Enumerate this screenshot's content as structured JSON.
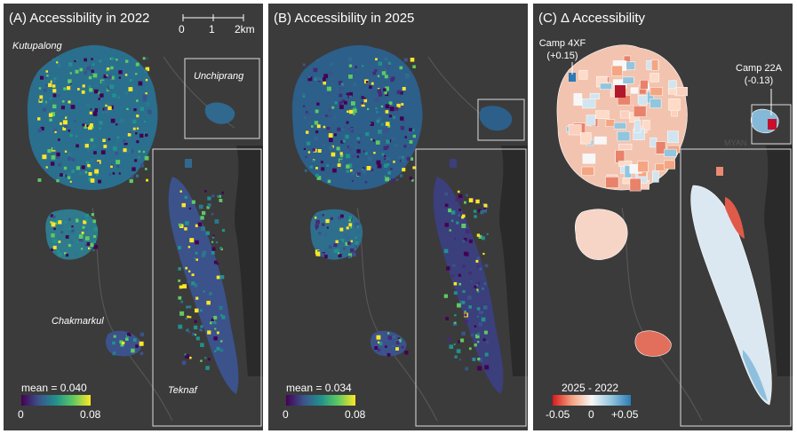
{
  "panels": [
    {
      "title": "(A) Accessibility in 2022",
      "mean_label": "mean = 0.040",
      "legend_min": "0",
      "legend_max": "0.08",
      "colormap": [
        "#440154",
        "#3b528b",
        "#21918c",
        "#5ec962",
        "#fde725"
      ]
    },
    {
      "title": "(B) Accessibility in 2025",
      "mean_label": "mean = 0.034",
      "legend_min": "0",
      "legend_max": "0.08",
      "colormap": [
        "#440154",
        "#3b528b",
        "#21918c",
        "#5ec962",
        "#fde725"
      ]
    },
    {
      "title": "(C) Δ Accessibility",
      "legend_title": "2025 - 2022",
      "legend_min": "-0.05",
      "legend_mid": "0",
      "legend_max": "+0.05",
      "colormap": [
        "#d7191c",
        "#f4a582",
        "#f7f7f7",
        "#92c5de",
        "#2c7bb6"
      ]
    }
  ],
  "place_labels": {
    "kutupalong": "Kutupalong",
    "unchiprang": "Unchiprang",
    "chakmarkul": "Chakmarkul",
    "teknaf": "Teknaf"
  },
  "scale_bar": {
    "ticks": [
      "0",
      "1",
      "2km"
    ]
  },
  "annotations": [
    {
      "camp": "Camp 4XF",
      "delta": "(+0.15)"
    },
    {
      "camp": "Camp 22A",
      "delta": "(-0.13)"
    }
  ],
  "basemap_text": "MYAN",
  "colors": {
    "background": "#3b3b3b",
    "river": "#2a2a2a",
    "road": "#5a5a5a",
    "frame": "#dddddd"
  }
}
